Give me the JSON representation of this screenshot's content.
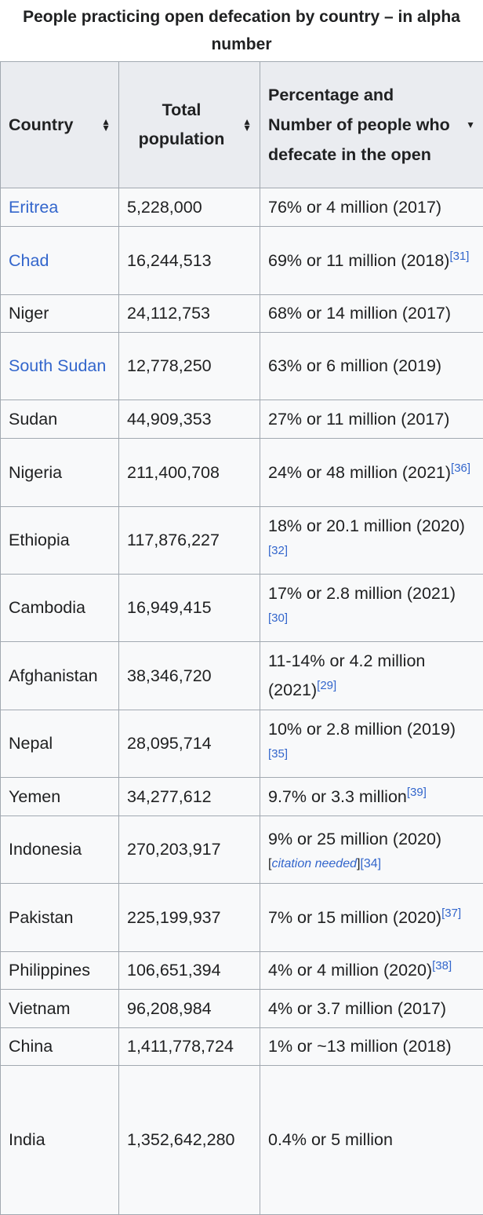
{
  "caption": {
    "line1": "People practicing open defecation by country – in alpha",
    "line2": "number"
  },
  "headers": {
    "country": "Country",
    "population": "Total population",
    "value": "Percentage and Number of people who defecate in the open"
  },
  "icons": {
    "sort_both": "sort-updown-icon",
    "sort_desc": "sort-down-icon"
  },
  "colors": {
    "link": "#3366cc",
    "header_bg": "#eaecf0",
    "cell_bg": "#f8f9fa",
    "border": "#a2a9b1"
  },
  "rows": [
    {
      "country": "Eritrea",
      "link": true,
      "population": "5,228,000",
      "value": "76% or 4 million (2017)",
      "ref": ""
    },
    {
      "country": "Chad",
      "link": true,
      "population": "16,244,513",
      "value": "69% or 11 million (2018)",
      "ref": "[31]"
    },
    {
      "country": "Niger",
      "link": false,
      "population": "24,112,753",
      "value": "68% or 14 million (2017)",
      "ref": ""
    },
    {
      "country": "South Sudan",
      "link": true,
      "population": "12,778,250",
      "value": "63% or 6 million (2019)",
      "ref": ""
    },
    {
      "country": "Sudan",
      "link": false,
      "population": "44,909,353",
      "value": "27% or 11 million (2017)",
      "ref": ""
    },
    {
      "country": "Nigeria",
      "link": false,
      "population": "211,400,708",
      "value": "24% or 48 million (2021)",
      "ref": "[36]"
    },
    {
      "country": "Ethiopia",
      "link": false,
      "population": "117,876,227",
      "value": "18% or 20.1 million (2020)",
      "ref": "[32]"
    },
    {
      "country": "Cambodia",
      "link": false,
      "population": "16,949,415",
      "value": "17% or 2.8 million (2021)",
      "ref": "[30]"
    },
    {
      "country": "Afghanistan",
      "link": false,
      "population": "38,346,720",
      "value": "11-14% or 4.2 million (2021)",
      "ref": "[29]"
    },
    {
      "country": "Nepal",
      "link": false,
      "population": "28,095,714",
      "value": "10% or 2.8 million (2019)",
      "ref": "[35]"
    },
    {
      "country": "Yemen",
      "link": false,
      "population": "34,277,612",
      "value": "9.7% or 3.3 million",
      "ref": "[39]"
    },
    {
      "country": "Indonesia",
      "link": false,
      "population": "270,203,917",
      "value": "9% or 25 million (2020)",
      "ref": "",
      "citation": "citation needed",
      "citation_ref": "[34]"
    },
    {
      "country": "Pakistan",
      "link": false,
      "population": "225,199,937",
      "value": "7% or 15 million (2020)",
      "ref": "[37]"
    },
    {
      "country": "Philippines",
      "link": false,
      "population": "106,651,394",
      "value": "4% or 4 million (2020)",
      "ref": "[38]"
    },
    {
      "country": "Vietnam",
      "link": false,
      "population": "96,208,984",
      "value": "4% or 3.7 million (2017)",
      "ref": ""
    },
    {
      "country": "China",
      "link": false,
      "population": "1,411,778,724",
      "value": "1% or ~13 million (2018)",
      "ref": ""
    },
    {
      "country": "India",
      "link": false,
      "population": "1,352,642,280",
      "value": "0.4% or 5 million",
      "ref": ""
    }
  ]
}
